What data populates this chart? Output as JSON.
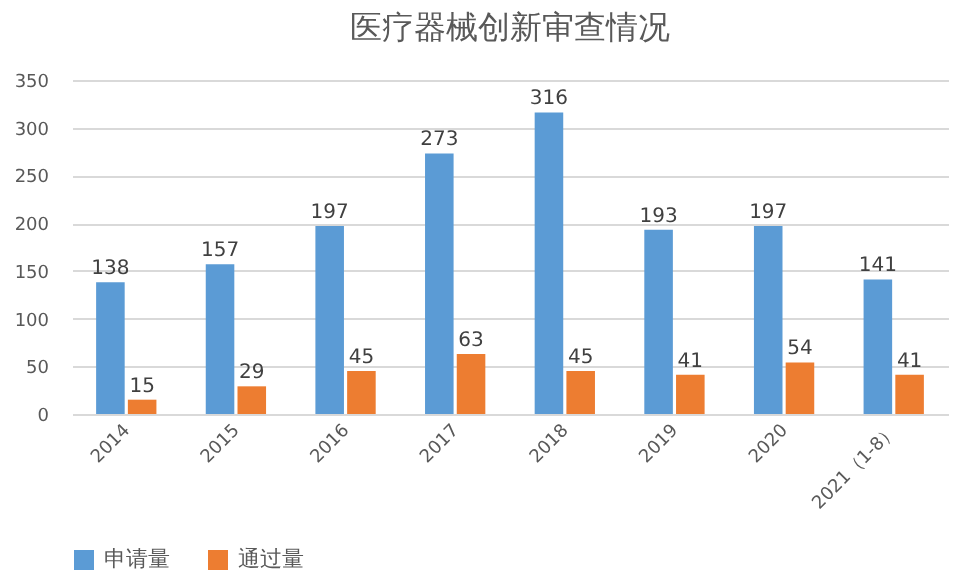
{
  "chart_data": {
    "type": "bar",
    "title": "医疗器械创新审查情况",
    "categories": [
      "2014",
      "2015",
      "2016",
      "2017",
      "2018",
      "2019",
      "2020",
      "2021（1-8）"
    ],
    "series": [
      {
        "name": "申请量",
        "color": "#5b9bd5",
        "values": [
          138,
          157,
          197,
          273,
          316,
          193,
          197,
          141
        ]
      },
      {
        "name": "通过量",
        "color": "#ed7d31",
        "values": [
          15,
          29,
          45,
          63,
          45,
          41,
          54,
          41
        ]
      }
    ],
    "ylim": [
      0,
      350
    ],
    "yticks": [
      0,
      50,
      100,
      150,
      200,
      250,
      300,
      350
    ],
    "grid": "y",
    "legend": "bottom",
    "data_labels": true
  }
}
